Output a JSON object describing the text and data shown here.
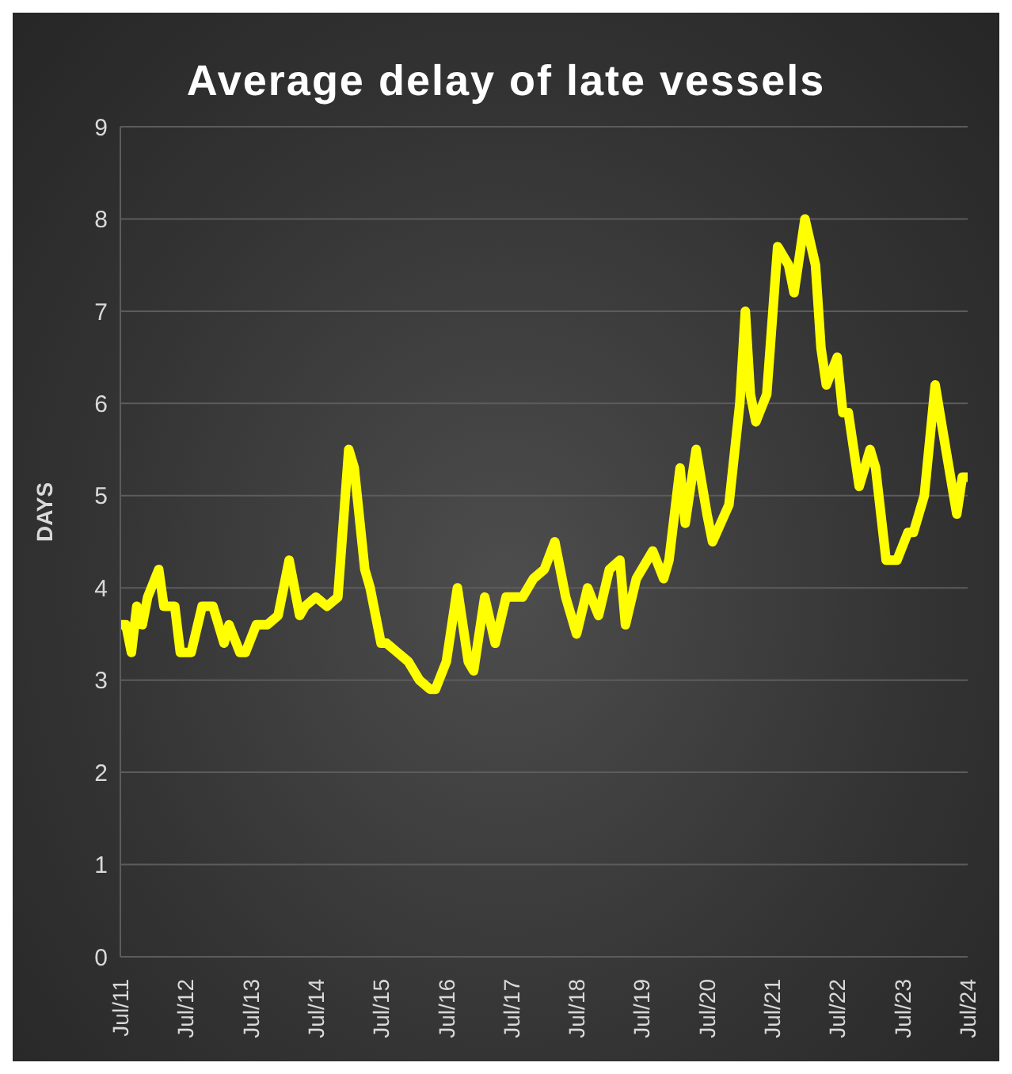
{
  "chart_data": {
    "type": "line",
    "title": "Average delay of late vessels",
    "ylabel": "DAYS",
    "x": [
      "2011-07",
      "2011-08",
      "2011-09",
      "2011-10",
      "2011-11",
      "2011-12",
      "2012-02",
      "2012-03",
      "2012-05",
      "2012-06",
      "2012-08",
      "2012-10",
      "2012-12",
      "2013-02",
      "2013-03",
      "2013-05",
      "2013-06",
      "2013-08",
      "2013-10",
      "2013-12",
      "2014-02",
      "2014-04",
      "2014-05",
      "2014-07",
      "2014-09",
      "2014-11",
      "2015-01",
      "2015-02",
      "2015-04",
      "2015-05",
      "2015-07",
      "2015-08",
      "2015-10",
      "2015-12",
      "2016-02",
      "2016-04",
      "2016-05",
      "2016-07",
      "2016-09",
      "2016-11",
      "2016-12",
      "2017-02",
      "2017-04",
      "2017-06",
      "2017-09",
      "2017-11",
      "2018-01",
      "2018-03",
      "2018-05",
      "2018-07",
      "2018-09",
      "2018-11",
      "2019-01",
      "2019-03",
      "2019-04",
      "2019-06",
      "2019-09",
      "2019-11",
      "2019-12",
      "2020-02",
      "2020-03",
      "2020-05",
      "2020-07",
      "2020-08",
      "2020-11",
      "2021-01",
      "2021-02",
      "2021-03",
      "2021-04",
      "2021-06",
      "2021-08",
      "2021-10",
      "2021-11",
      "2022-01",
      "2022-03",
      "2022-04",
      "2022-05",
      "2022-07",
      "2022-08",
      "2022-09",
      "2022-11",
      "2023-01",
      "2023-02",
      "2023-04",
      "2023-06",
      "2023-08",
      "2023-09",
      "2023-11",
      "2024-01",
      "2024-03",
      "2024-05",
      "2024-06",
      "2024-07"
    ],
    "series": [
      {
        "color": "#ffff00",
        "values": [
          3.6,
          3.6,
          3.3,
          3.8,
          3.6,
          3.9,
          4.2,
          3.8,
          3.8,
          3.3,
          3.3,
          3.8,
          3.8,
          3.4,
          3.6,
          3.3,
          3.3,
          3.6,
          3.6,
          3.7,
          4.3,
          3.7,
          3.8,
          3.9,
          3.8,
          3.9,
          5.5,
          5.3,
          4.2,
          4.0,
          3.4,
          3.4,
          3.3,
          3.2,
          3.0,
          2.9,
          2.9,
          3.2,
          4.0,
          3.2,
          3.1,
          3.9,
          3.4,
          3.9,
          3.9,
          4.1,
          4.2,
          4.5,
          3.9,
          3.5,
          4.0,
          3.7,
          4.2,
          4.3,
          3.6,
          4.1,
          4.4,
          4.1,
          4.3,
          5.3,
          4.7,
          5.5,
          4.8,
          4.5,
          4.9,
          6.0,
          7.0,
          6.1,
          5.8,
          6.1,
          7.7,
          7.5,
          7.2,
          8.0,
          7.5,
          6.6,
          6.2,
          6.5,
          5.9,
          5.9,
          5.1,
          5.5,
          5.3,
          4.3,
          4.3,
          4.6,
          4.6,
          5.0,
          6.2,
          5.5,
          4.8,
          5.2,
          5.2
        ]
      }
    ],
    "xlim": [
      "2011-07",
      "2024-07"
    ],
    "xticks": [
      {
        "value": "2011-07",
        "label": "Jul/11"
      },
      {
        "value": "2012-07",
        "label": "Jul/12"
      },
      {
        "value": "2013-07",
        "label": "Jul/13"
      },
      {
        "value": "2014-07",
        "label": "Jul/14"
      },
      {
        "value": "2015-07",
        "label": "Jul/15"
      },
      {
        "value": "2016-07",
        "label": "Jul/16"
      },
      {
        "value": "2017-07",
        "label": "Jul/17"
      },
      {
        "value": "2018-07",
        "label": "Jul/18"
      },
      {
        "value": "2019-07",
        "label": "Jul/19"
      },
      {
        "value": "2020-07",
        "label": "Jul/20"
      },
      {
        "value": "2021-07",
        "label": "Jul/21"
      },
      {
        "value": "2022-07",
        "label": "Jul/22"
      },
      {
        "value": "2023-07",
        "label": "Jul/23"
      },
      {
        "value": "2024-07",
        "label": "Jul/24"
      }
    ],
    "ylim": [
      0,
      9
    ],
    "yticks": [
      0,
      1,
      2,
      3,
      4,
      5,
      6,
      7,
      8,
      9
    ],
    "grid": "y",
    "legend": false,
    "marker": "none",
    "line_style": "solid"
  }
}
